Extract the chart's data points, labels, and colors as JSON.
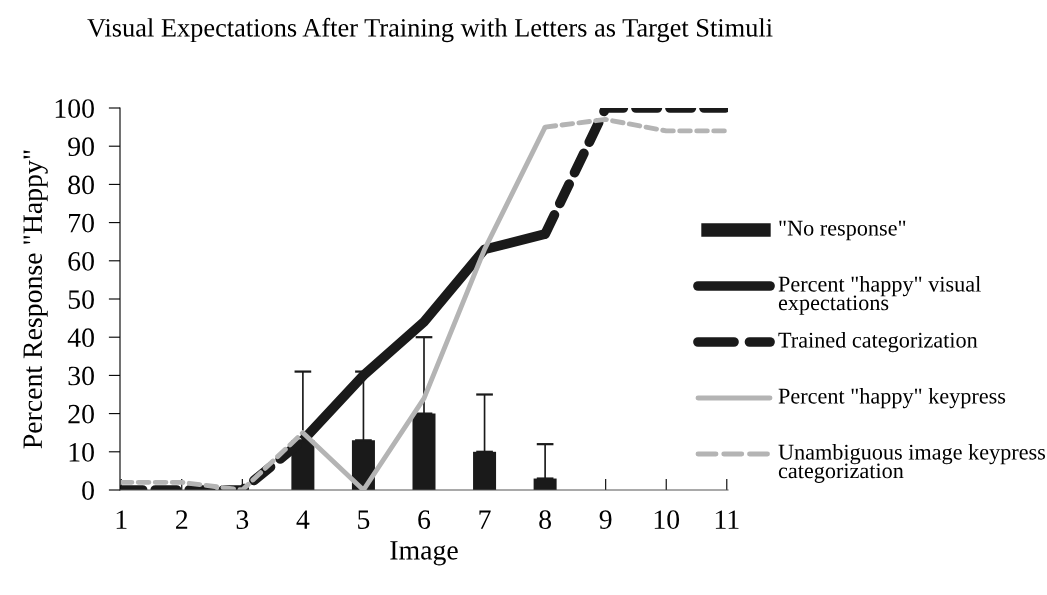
{
  "chart_data": {
    "type": "bar",
    "title": "Visual Expectations After Training with Letters as Target Stimuli",
    "xlabel": "Image",
    "ylabel": "Percent Response \"Happy\"",
    "categories": [
      "1",
      "2",
      "3",
      "4",
      "5",
      "6",
      "7",
      "8",
      "9",
      "10",
      "11"
    ],
    "ylim": [
      0,
      100
    ],
    "yticks": [
      0,
      10,
      20,
      30,
      40,
      50,
      60,
      70,
      80,
      90,
      100
    ],
    "legend": "right",
    "grid": false,
    "series": [
      {
        "name": "\"No response\"",
        "color": "#1a1a1a",
        "values": [
          null,
          null,
          null,
          13,
          13,
          20,
          10,
          3,
          null,
          null,
          null
        ],
        "errors": [
          null,
          null,
          null,
          [
            13,
            31
          ],
          [
            13,
            31
          ],
          [
            20,
            40
          ],
          [
            10,
            25
          ],
          [
            3,
            12
          ],
          null,
          null,
          null
        ]
      },
      {
        "name": "Percent \"happy\" visual expectations",
        "type": "line",
        "color": "#1a1a1a",
        "line_style": "solid",
        "values": [
          null,
          null,
          null,
          13,
          30,
          44,
          63,
          67,
          null,
          null,
          null
        ]
      },
      {
        "name": "Trained categorization",
        "type": "line",
        "color": "#1a1a1a",
        "line_style": "dashed",
        "values": [
          0,
          0,
          0,
          13,
          null,
          null,
          null,
          67,
          100,
          100,
          100
        ]
      },
      {
        "name": "Percent \"happy\" keypress",
        "type": "line",
        "color": "#b4b4b4",
        "line_style": "solid",
        "values": [
          null,
          null,
          null,
          15,
          0,
          24,
          63,
          95,
          null,
          null,
          null
        ]
      },
      {
        "name": "Unambiguous image keypress categorization",
        "type": "line",
        "color": "#b4b4b4",
        "line_style": "dashed",
        "values": [
          2,
          2,
          0,
          15,
          null,
          null,
          null,
          95,
          97,
          94,
          94
        ]
      }
    ]
  }
}
